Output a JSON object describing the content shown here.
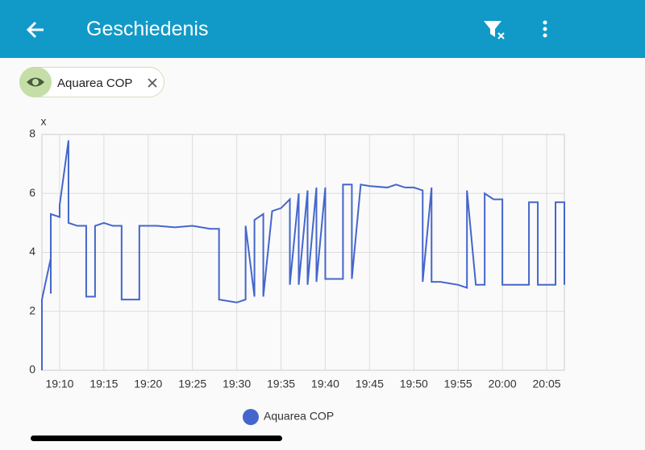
{
  "header": {
    "title": "Geschiedenis"
  },
  "filter_chip": {
    "label": "Aquarea COP"
  },
  "chart_data": {
    "type": "line",
    "ylabel": "x",
    "xlim": [
      "19:08",
      "20:07"
    ],
    "xticks": [
      "19:10",
      "19:15",
      "19:20",
      "19:25",
      "19:30",
      "19:35",
      "19:40",
      "19:45",
      "19:50",
      "19:55",
      "20:00",
      "20:05"
    ],
    "ylim": [
      0,
      8
    ],
    "yticks": [
      0,
      2,
      4,
      6,
      8
    ],
    "grid": true,
    "x": [
      "19:08",
      "19:08",
      "19:09",
      "19:09",
      "19:09",
      "19:09",
      "19:10",
      "19:10",
      "19:11",
      "19:11",
      "19:12",
      "19:13",
      "19:13",
      "19:14",
      "19:14",
      "19:15",
      "19:16",
      "19:17",
      "19:17",
      "19:19",
      "19:19",
      "19:20",
      "19:21",
      "19:23",
      "19:25",
      "19:27",
      "19:28",
      "19:28",
      "19:30",
      "19:31",
      "19:31",
      "19:32",
      "19:32",
      "19:33",
      "19:33",
      "19:34",
      "19:35",
      "19:36",
      "19:36",
      "19:37",
      "19:37",
      "19:38",
      "19:38",
      "19:39",
      "19:39",
      "19:40",
      "19:40",
      "19:42",
      "19:42",
      "19:43",
      "19:43",
      "19:44",
      "19:45",
      "19:47",
      "19:48",
      "19:49",
      "19:50",
      "19:51",
      "19:51",
      "19:52",
      "19:52",
      "19:53",
      "19:55",
      "19:56",
      "19:56",
      "19:57",
      "19:58",
      "19:58",
      "19:59",
      "20:00",
      "20:00",
      "20:03",
      "20:03",
      "20:04",
      "20:04",
      "20:06",
      "20:06",
      "20:07",
      "20:07",
      "20:07"
    ],
    "series": [
      {
        "name": "Aquarea COP",
        "color": "#4466cc",
        "values": [
          0,
          2.4,
          3.8,
          4.5,
          2.6,
          5.3,
          5.2,
          5.6,
          7.8,
          5.0,
          4.9,
          4.9,
          2.5,
          2.5,
          4.9,
          5.0,
          4.9,
          4.9,
          2.4,
          2.4,
          4.9,
          4.9,
          4.9,
          4.85,
          4.9,
          4.8,
          4.8,
          2.4,
          2.3,
          2.4,
          4.9,
          2.5,
          5.1,
          5.3,
          2.5,
          5.4,
          5.5,
          5.8,
          2.9,
          6.0,
          2.9,
          6.1,
          2.9,
          6.2,
          3.0,
          6.2,
          3.1,
          3.1,
          6.3,
          6.3,
          3.1,
          6.3,
          6.25,
          6.2,
          6.3,
          6.2,
          6.2,
          6.1,
          3.0,
          6.2,
          3.0,
          3.0,
          2.9,
          2.8,
          6.1,
          2.9,
          2.9,
          6.0,
          5.8,
          5.8,
          2.9,
          2.9,
          5.7,
          5.7,
          2.9,
          2.9,
          5.7,
          5.7,
          2.9,
          3.0
        ]
      }
    ]
  }
}
